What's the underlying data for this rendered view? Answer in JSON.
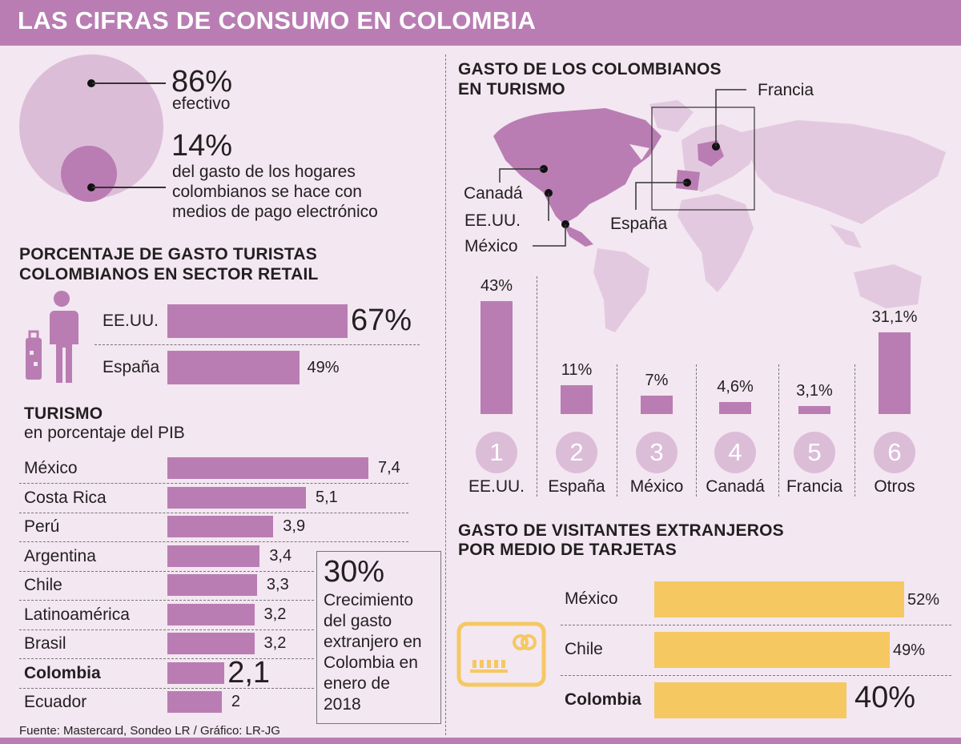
{
  "header": {
    "title": "LAS CIFRAS DE CONSUMO EN COLOMBIA"
  },
  "payment": {
    "cash_pct": "86%",
    "cash_label": "efectivo",
    "electronic_pct": "14%",
    "electronic_lines": [
      "del gasto de los hogares",
      "colombianos se hace con",
      "medios de pago electrónico"
    ]
  },
  "retail": {
    "title_lines": [
      "PORCENTAJE DE GASTO TURISTAS",
      "COLOMBIANOS EN SECTOR RETAIL"
    ],
    "icon": "traveler-with-suitcase-icon"
  },
  "gdp": {
    "title": "TURISMO",
    "subtitle": "en porcentaje del PIB"
  },
  "growth": {
    "value": "30%",
    "lines": [
      "Crecimiento",
      "del gasto",
      "extranjero en",
      "Colombia en",
      "enero de",
      "2018"
    ]
  },
  "source": "Fuente: Mastercard, Sondeo LR / Gráfico: LR-JG",
  "tourism": {
    "title_lines": [
      "GASTO DE LOS COLOMBIANOS",
      "EN TURISMO"
    ],
    "map_labels": {
      "francia": "Francia",
      "canada": "Canadá",
      "eeuu": "EE.UU.",
      "espana": "España",
      "mexico": "México"
    },
    "icon": "world-map-icon"
  },
  "cards": {
    "title_lines": [
      "GASTO DE VISITANTES EXTRANJEROS",
      "POR MEDIO DE TARJETAS"
    ],
    "icon": "credit-card-icon"
  },
  "colors": {
    "purple": "#b97db3",
    "light_purple": "#dcbdd8",
    "yellow": "#f5c862"
  },
  "chart_data": [
    {
      "type": "bar",
      "title": "PORCENTAJE DE GASTO TURISTAS COLOMBIANOS EN SECTOR RETAIL",
      "categories": [
        "EE.UU.",
        "España"
      ],
      "values": [
        67,
        49
      ],
      "labels": [
        "67%",
        "49%"
      ]
    },
    {
      "type": "bar",
      "title": "TURISMO",
      "subtitle": "en porcentaje del PIB",
      "categories": [
        "México",
        "Costa Rica",
        "Perú",
        "Argentina",
        "Chile",
        "Latinoamérica",
        "Brasil",
        "Colombia",
        "Ecuador"
      ],
      "values": [
        7.4,
        5.1,
        3.9,
        3.4,
        3.3,
        3.2,
        3.2,
        2.1,
        2
      ],
      "labels": [
        "7,4",
        "5,1",
        "3,9",
        "3,4",
        "3,3",
        "3,2",
        "3,2",
        "2,1",
        "2"
      ]
    },
    {
      "type": "bar",
      "title": "GASTO DE LOS COLOMBIANOS EN TURISMO",
      "categories": [
        "EE.UU.",
        "España",
        "México",
        "Canadá",
        "Francia",
        "Otros"
      ],
      "ranks": [
        "1",
        "2",
        "3",
        "4",
        "5",
        "6"
      ],
      "values": [
        43,
        11,
        7,
        4.6,
        3.1,
        31.1
      ],
      "labels": [
        "43%",
        "11%",
        "7%",
        "4,6%",
        "3,1%",
        "31,1%"
      ]
    },
    {
      "type": "bar",
      "title": "GASTO DE VISITANTES EXTRANJEROS POR MEDIO DE TARJETAS",
      "categories": [
        "México",
        "Chile",
        "Colombia"
      ],
      "values": [
        52,
        49,
        40
      ],
      "labels": [
        "52%",
        "49%",
        "40%"
      ]
    }
  ]
}
